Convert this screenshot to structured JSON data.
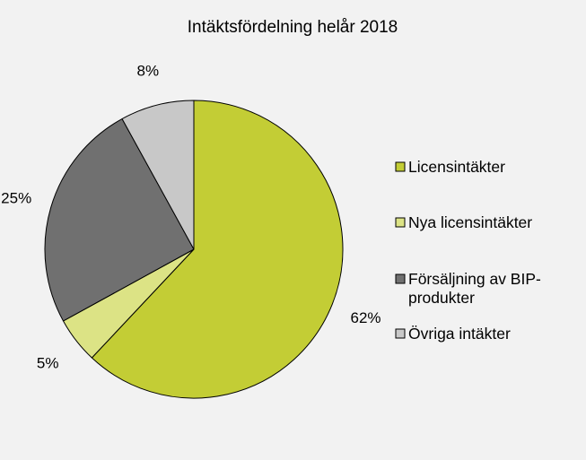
{
  "chart_data": {
    "type": "pie",
    "title": "Intäktsfördelning helår 2018",
    "slices": [
      {
        "name": "Licensintäkter",
        "value": 62,
        "label": "62%",
        "color": "#c3cd35"
      },
      {
        "name": "Nya licensintäkter",
        "value": 5,
        "label": "5%",
        "color": "#dce385"
      },
      {
        "name": "Försäljning av BIP-produkter",
        "value": 25,
        "label": "25%",
        "color": "#707070"
      },
      {
        "name": "Övriga intäkter",
        "value": 8,
        "label": "8%",
        "color": "#c8c8c8"
      }
    ],
    "legend": {
      "placement": "right",
      "entries": [
        {
          "lines": [
            "Licensintäkter"
          ]
        },
        {
          "lines": [
            "Nya licensintäkter"
          ]
        },
        {
          "lines": [
            "Försäljning av BIP-",
            "produkter"
          ]
        },
        {
          "lines": [
            "Övriga intäkter"
          ]
        }
      ]
    },
    "start_angle_deg": 0,
    "direction": "clockwise"
  }
}
